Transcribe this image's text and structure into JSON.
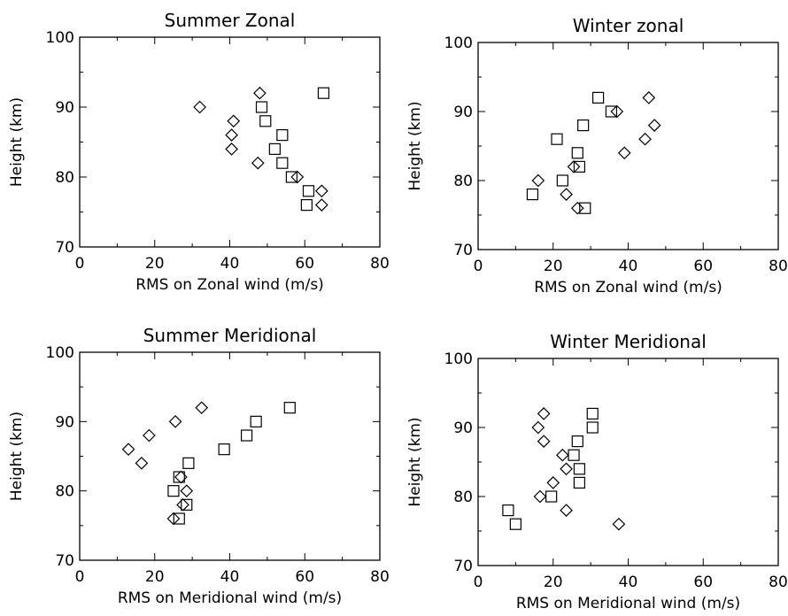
{
  "chart_data": [
    {
      "type": "scatter",
      "title": "Summer Zonal",
      "xlabel": "RMS on Zonal wind (m/s)",
      "ylabel": "Height (km)",
      "xlim": [
        0,
        80
      ],
      "ylim": [
        70,
        100
      ],
      "xticks": [
        "0",
        "20",
        "40",
        "60",
        "80"
      ],
      "yticks": [
        "70",
        "80",
        "90",
        "100"
      ],
      "series": [
        {
          "marker": "square",
          "points": [
            [
              65,
              92
            ],
            [
              48.5,
              90
            ],
            [
              49.5,
              88
            ],
            [
              54,
              86
            ],
            [
              52,
              84
            ],
            [
              54,
              82
            ],
            [
              56.5,
              80
            ],
            [
              61,
              78
            ],
            [
              60.5,
              76
            ]
          ]
        },
        {
          "marker": "diamond",
          "points": [
            [
              32,
              90
            ],
            [
              48,
              92
            ],
            [
              41,
              88
            ],
            [
              40.5,
              86
            ],
            [
              40.5,
              84
            ],
            [
              47.5,
              82
            ],
            [
              58,
              80
            ],
            [
              64.5,
              78
            ],
            [
              64.5,
              76
            ]
          ]
        }
      ]
    },
    {
      "type": "scatter",
      "title": "Winter zonal",
      "xlabel": "RMS on Zonal wind (m/s)",
      "ylabel": "Height (km)",
      "xlim": [
        0,
        80
      ],
      "ylim": [
        70,
        100
      ],
      "xticks": [
        "0",
        "20",
        "40",
        "60",
        "80"
      ],
      "yticks": [
        "70",
        "80",
        "90",
        "100"
      ],
      "series": [
        {
          "marker": "square",
          "points": [
            [
              32,
              92
            ],
            [
              35.5,
              90
            ],
            [
              28,
              88
            ],
            [
              21,
              86
            ],
            [
              26.5,
              84
            ],
            [
              27,
              82
            ],
            [
              22.5,
              80
            ],
            [
              14.5,
              78
            ],
            [
              28.5,
              76
            ]
          ]
        },
        {
          "marker": "diamond",
          "points": [
            [
              45.5,
              92
            ],
            [
              37,
              90
            ],
            [
              47,
              88
            ],
            [
              44.5,
              86
            ],
            [
              39,
              84
            ],
            [
              25.5,
              82
            ],
            [
              16,
              80
            ],
            [
              23.5,
              78
            ],
            [
              26.5,
              76
            ]
          ]
        }
      ]
    },
    {
      "type": "scatter",
      "title": "Summer Meridional",
      "xlabel": "RMS on Meridional wind (m/s)",
      "ylabel": "Height (km)",
      "xlim": [
        0,
        80
      ],
      "ylim": [
        70,
        100
      ],
      "xticks": [
        "0",
        "20",
        "40",
        "60",
        "80"
      ],
      "yticks": [
        "70",
        "80",
        "90",
        "100"
      ],
      "series": [
        {
          "marker": "square",
          "points": [
            [
              56,
              92
            ],
            [
              47,
              90
            ],
            [
              44.5,
              88
            ],
            [
              38.5,
              86
            ],
            [
              29,
              84
            ],
            [
              26.5,
              82
            ],
            [
              25,
              80
            ],
            [
              28.5,
              78
            ],
            [
              26.5,
              76
            ]
          ]
        },
        {
          "marker": "diamond",
          "points": [
            [
              32.5,
              92
            ],
            [
              25.5,
              90
            ],
            [
              18.5,
              88
            ],
            [
              13,
              86
            ],
            [
              16.5,
              84
            ],
            [
              27,
              82
            ],
            [
              28.5,
              80
            ],
            [
              27.5,
              78
            ],
            [
              25,
              76
            ]
          ]
        }
      ]
    },
    {
      "type": "scatter",
      "title": "Winter Meridional",
      "xlabel": "RMS on Meridional wind (m/s)",
      "ylabel": "Height (km)",
      "xlim": [
        0,
        80
      ],
      "ylim": [
        70,
        100
      ],
      "xticks": [
        "0",
        "20",
        "40",
        "60",
        "80"
      ],
      "yticks": [
        "70",
        "80",
        "90",
        "100"
      ],
      "series": [
        {
          "marker": "square",
          "points": [
            [
              30.5,
              92
            ],
            [
              30.5,
              90
            ],
            [
              26.5,
              88
            ],
            [
              25.5,
              86
            ],
            [
              27,
              84
            ],
            [
              27,
              82
            ],
            [
              19.5,
              80
            ],
            [
              8,
              78
            ],
            [
              10,
              76
            ]
          ]
        },
        {
          "marker": "diamond",
          "points": [
            [
              17.5,
              92
            ],
            [
              16,
              90
            ],
            [
              17.5,
              88
            ],
            [
              22.5,
              86
            ],
            [
              23.5,
              84
            ],
            [
              20,
              82
            ],
            [
              16.5,
              80
            ],
            [
              23.5,
              78
            ],
            [
              37.5,
              76
            ]
          ]
        }
      ]
    }
  ]
}
